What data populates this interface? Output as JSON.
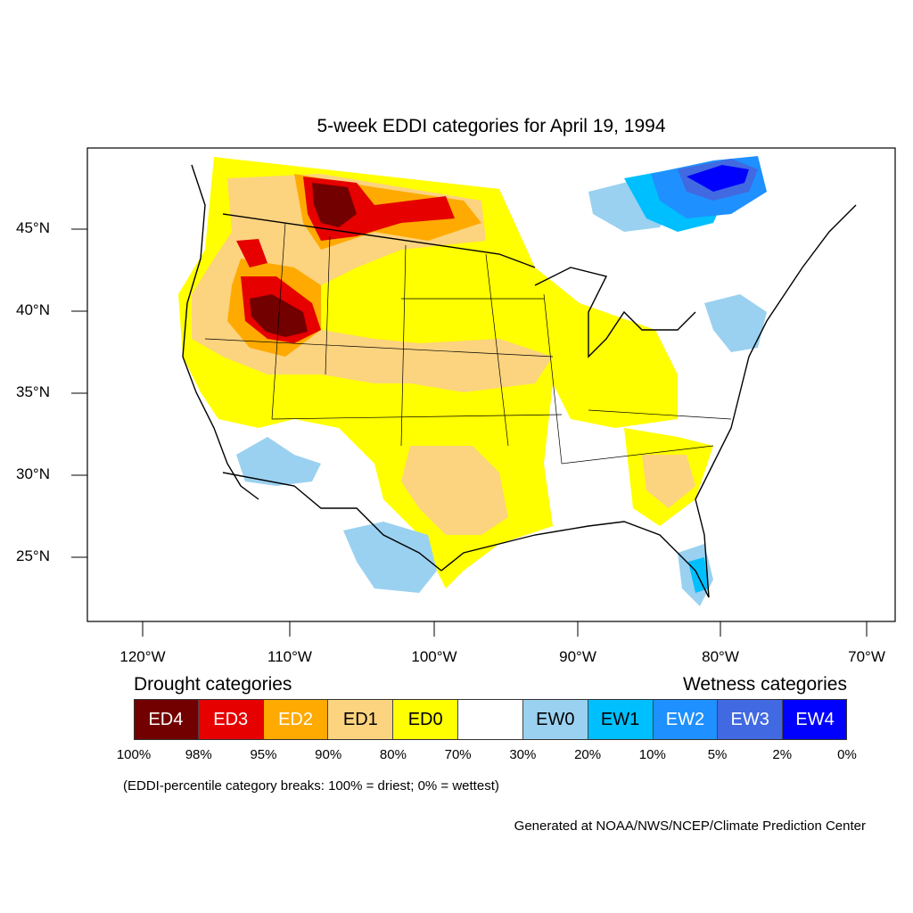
{
  "title": "5-week EDDI categories for April 19, 1994",
  "lat_labels": [
    "45°N",
    "40°N",
    "35°N",
    "30°N",
    "25°N"
  ],
  "lon_labels": [
    "120°W",
    "110°W",
    "100°W",
    "90°W",
    "80°W",
    "70°W"
  ],
  "legend": {
    "drought_heading": "Drought categories",
    "wetness_heading": "Wetness categories",
    "categories": [
      {
        "label": "ED4",
        "color": "#730000",
        "text_color": "#ffffff"
      },
      {
        "label": "ED3",
        "color": "#e60000",
        "text_color": "#ffffff"
      },
      {
        "label": "ED2",
        "color": "#ffaa00",
        "text_color": "#ffffff"
      },
      {
        "label": "ED1",
        "color": "#fcd37f",
        "text_color": "#000000"
      },
      {
        "label": "ED0",
        "color": "#ffff00",
        "text_color": "#000000"
      },
      {
        "label": "",
        "color": "#ffffff",
        "text_color": "#000000"
      },
      {
        "label": "EW0",
        "color": "#9ad1f0",
        "text_color": "#000000"
      },
      {
        "label": "EW1",
        "color": "#00bfff",
        "text_color": "#000000"
      },
      {
        "label": "EW2",
        "color": "#1e90ff",
        "text_color": "#ffffff"
      },
      {
        "label": "EW3",
        "color": "#4169e1",
        "text_color": "#ffffff"
      },
      {
        "label": "EW4",
        "color": "#0000ff",
        "text_color": "#ffffff"
      }
    ],
    "breaks": [
      "100%",
      "98%",
      "95%",
      "90%",
      "80%",
      "70%",
      "30%",
      "20%",
      "10%",
      "5%",
      "2%",
      "0%"
    ]
  },
  "note": "(EDDI-percentile category breaks: 100% = driest; 0% = wettest)",
  "credit": "Generated at NOAA/NWS/NCEP/Climate Prediction Center"
}
